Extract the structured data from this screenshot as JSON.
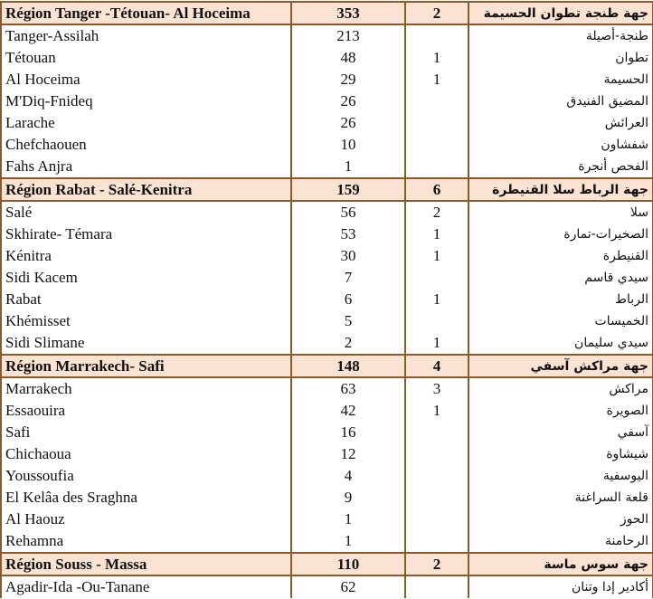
{
  "regions": [
    {
      "name": "Région Tanger -Tétouan- Al Hoceima",
      "count": "353",
      "second": "2",
      "arabic": "جهة طنجة تطوان الحسيمة",
      "rows": [
        {
          "name": "Tanger-Assilah",
          "count": "213",
          "second": "",
          "arabic": "طنجة-أصيلة"
        },
        {
          "name": "Tétouan",
          "count": "48",
          "second": "1",
          "arabic": "تطوان"
        },
        {
          "name": "Al Hoceima",
          "count": "29",
          "second": "1",
          "arabic": "الحسيمة"
        },
        {
          "name": "M'Diq-Fnideq",
          "count": "26",
          "second": "",
          "arabic": "المضيق الفنيدق"
        },
        {
          "name": "Larache",
          "count": "26",
          "second": "",
          "arabic": "العرائش"
        },
        {
          "name": "Chefchaouen",
          "count": "10",
          "second": "",
          "arabic": "شفشاون"
        },
        {
          "name": "Fahs Anjra",
          "count": "1",
          "second": "",
          "arabic": "الفحص أنجرة"
        }
      ]
    },
    {
      "name": "Région Rabat - Salé-Kenitra",
      "count": "159",
      "second": "6",
      "arabic": "جهة الرباط سلا القنيطرة",
      "rows": [
        {
          "name": "Salé",
          "count": "56",
          "second": "2",
          "arabic": "سلا"
        },
        {
          "name": "Skhirate- Témara",
          "count": "53",
          "second": "1",
          "arabic": "الصخيرات-تمارة"
        },
        {
          "name": "Kénitra",
          "count": "30",
          "second": "1",
          "arabic": "القنيطرة"
        },
        {
          "name": "Sidi Kacem",
          "count": "7",
          "second": "",
          "arabic": "سيدي قاسم"
        },
        {
          "name": "Rabat",
          "count": "6",
          "second": "1",
          "arabic": "الرباط"
        },
        {
          "name": "Khémisset",
          "count": "5",
          "second": "",
          "arabic": "الخميسات"
        },
        {
          "name": "Sidi Slimane",
          "count": "2",
          "second": "1",
          "arabic": "سيدي سليمان"
        }
      ]
    },
    {
      "name": "Région Marrakech- Safi",
      "count": "148",
      "second": "4",
      "arabic": "جهة مراكش آسفي",
      "rows": [
        {
          "name": "Marrakech",
          "count": "63",
          "second": "3",
          "arabic": "مراكش"
        },
        {
          "name": "Essaouira",
          "count": "42",
          "second": "1",
          "arabic": "الصويرة"
        },
        {
          "name": "Safi",
          "count": "16",
          "second": "",
          "arabic": "آسفي"
        },
        {
          "name": "Chichaoua",
          "count": "12",
          "second": "",
          "arabic": "شيشاوة"
        },
        {
          "name": "Youssoufia",
          "count": "4",
          "second": "",
          "arabic": "اليوسفية"
        },
        {
          "name": "El Kelâa des  Sraghna",
          "count": "9",
          "second": "",
          "arabic": "قلعة السراغنة"
        },
        {
          "name": "Al  Haouz",
          "count": "1",
          "second": "",
          "arabic": "الحوز"
        },
        {
          "name": "Rehamna",
          "count": "1",
          "second": "",
          "arabic": "الرحامنة"
        }
      ]
    },
    {
      "name": "Région Souss - Massa",
      "count": "110",
      "second": "2",
      "arabic": "جهة سوس ماسة",
      "rows": [
        {
          "name": "Agadir-Ida -Ou-Tanane",
          "count": "62",
          "second": "",
          "arabic": "أكادير إدا وتنان"
        }
      ]
    }
  ],
  "colors": {
    "region_bg": "#fbe3d3",
    "border": "#8b5a2b"
  }
}
